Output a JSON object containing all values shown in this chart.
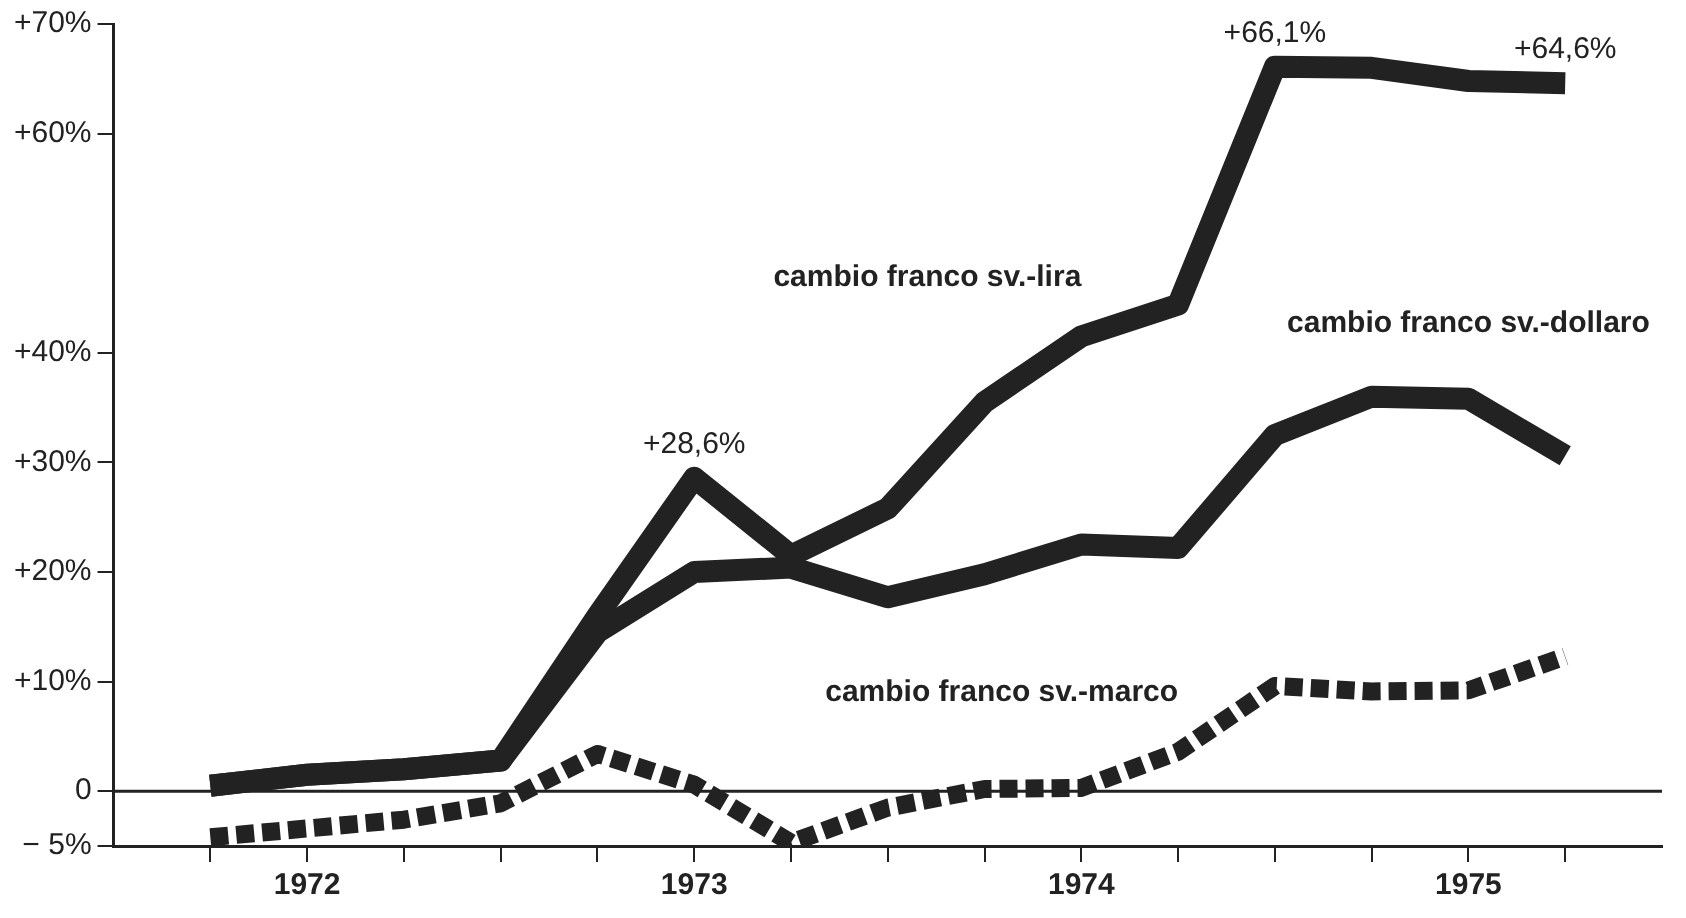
{
  "chart_data": {
    "type": "line",
    "x": [
      1972.25,
      1972.5,
      1972.75,
      1973,
      1973.25,
      1973.5,
      1973.75,
      1974,
      1974.25,
      1974.5,
      1974.75,
      1975,
      1975.25,
      1975.5,
      1975.75
    ],
    "series": [
      {
        "name": "cambio franco sv.-lira",
        "color": "#222222",
        "line_style": "solid",
        "values": [
          0.5,
          1.5,
          2,
          2.8,
          16,
          28.6,
          21.5,
          25.8,
          35.5,
          41.5,
          44.4,
          66.1,
          66,
          64.8,
          64.6
        ]
      },
      {
        "name": "cambio franco sv.-dollaro",
        "color": "#222222",
        "line_style": "solid",
        "values": [
          0.5,
          1.5,
          2,
          2.8,
          14.5,
          20,
          20.4,
          17.7,
          19.8,
          22.5,
          22.2,
          32.5,
          36,
          35.8,
          30.6
        ]
      },
      {
        "name": "cambio franco sv.-marco",
        "color": "#222222",
        "line_style": "dashed",
        "values": [
          -4.2,
          -3.4,
          -2.6,
          -1.1,
          3.4,
          0.6,
          -4.7,
          -1.5,
          0.2,
          0.3,
          3.6,
          9.6,
          9.1,
          9.2,
          12.3
        ]
      }
    ],
    "xlim": [
      1972,
      1976
    ],
    "xticks": [
      {
        "value": 1972.25,
        "label": null
      },
      {
        "value": 1972.5,
        "label": "1972"
      },
      {
        "value": 1972.75,
        "label": null
      },
      {
        "value": 1973,
        "label": null
      },
      {
        "value": 1973.25,
        "label": null
      },
      {
        "value": 1973.5,
        "label": "1973"
      },
      {
        "value": 1973.75,
        "label": null
      },
      {
        "value": 1974,
        "label": null
      },
      {
        "value": 1974.25,
        "label": null
      },
      {
        "value": 1974.5,
        "label": "1974"
      },
      {
        "value": 1974.75,
        "label": null
      },
      {
        "value": 1975,
        "label": null
      },
      {
        "value": 1975.25,
        "label": null
      },
      {
        "value": 1975.5,
        "label": "1975"
      },
      {
        "value": 1975.75,
        "label": null
      }
    ],
    "ylim": [
      -5,
      70
    ],
    "yticks": [
      {
        "value": -5,
        "label": "− 5%"
      },
      0,
      {
        "value": 10,
        "label": "+10%"
      },
      {
        "value": 20,
        "label": "+20%"
      },
      {
        "value": 30,
        "label": "+30%"
      },
      {
        "value": 40,
        "label": "+40%"
      },
      {
        "value": 60,
        "label": "+60%"
      },
      {
        "value": 70,
        "label": "+70%"
      }
    ],
    "ref_lines": [
      {
        "axis": "y",
        "value": 0
      }
    ],
    "annotations": [
      {
        "text": "+28,6%",
        "x": 1973.5,
        "y": 28.6
      },
      {
        "text": "+66,1%",
        "x": 1975,
        "y": 66.1
      },
      {
        "text": "+64,6%",
        "x": 1975.75,
        "y": 64.6
      }
    ],
    "legend": false,
    "marker": "none"
  }
}
